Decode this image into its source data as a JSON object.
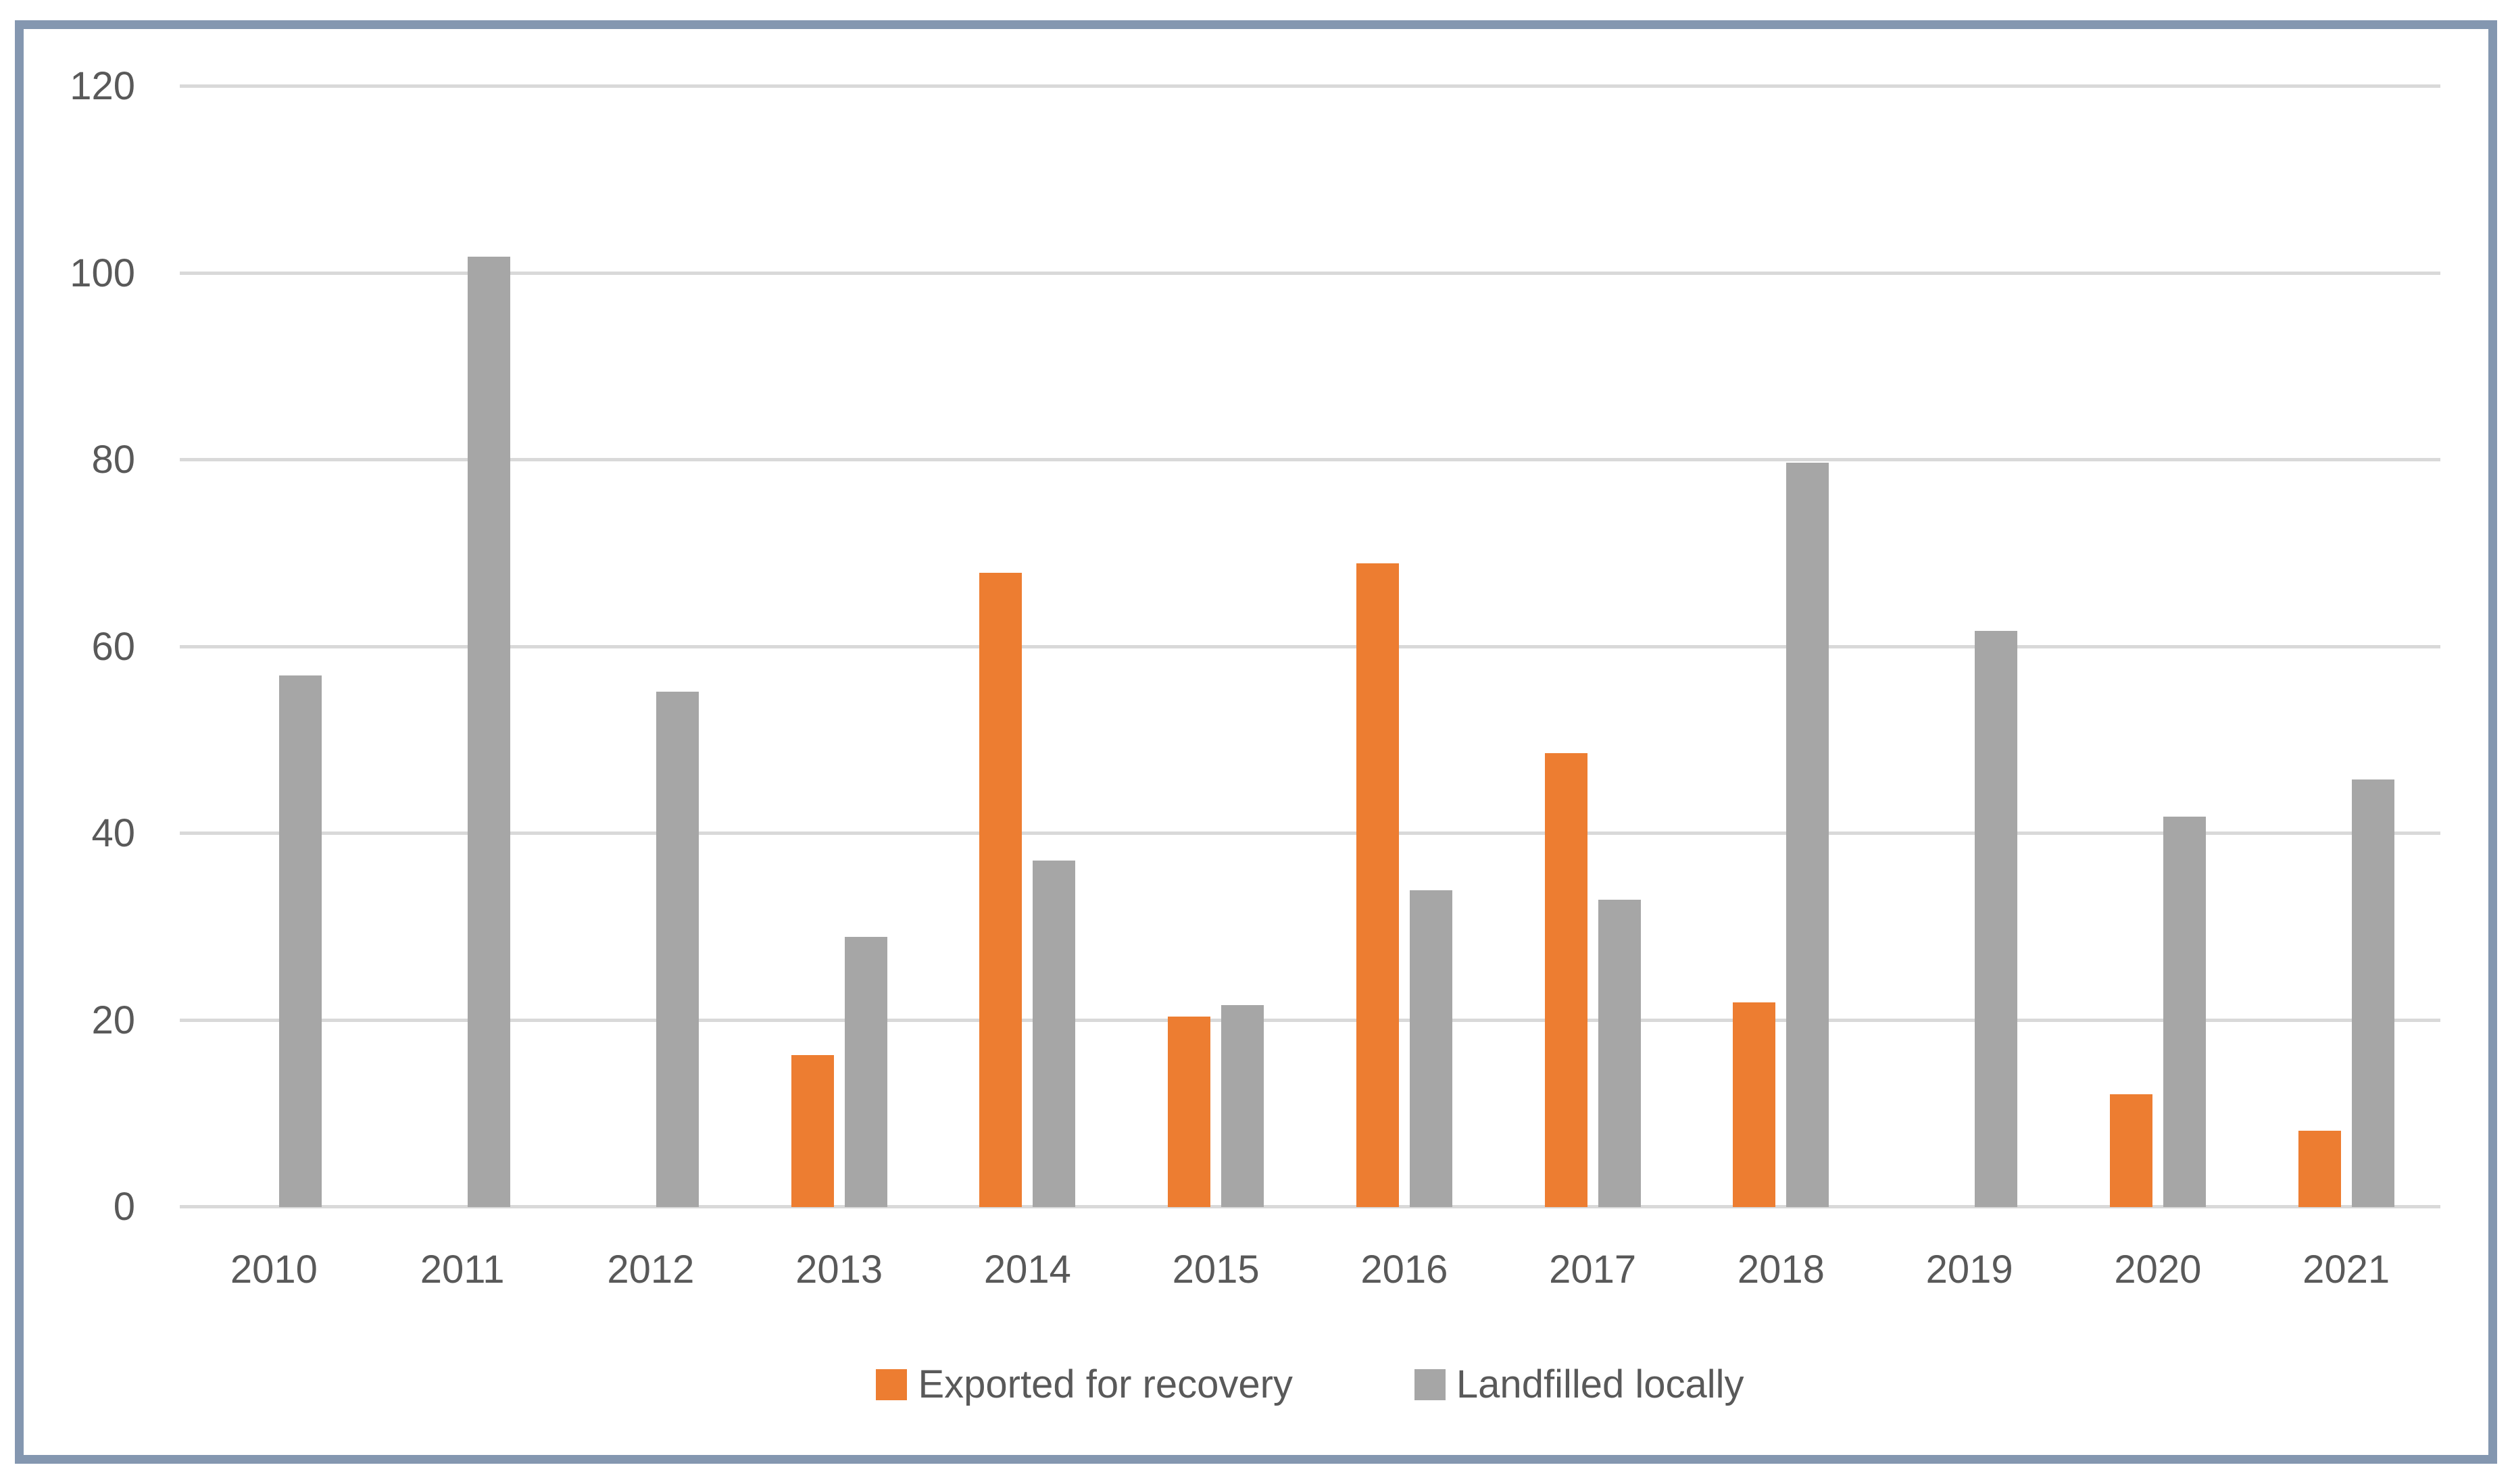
{
  "chart_data": {
    "type": "bar",
    "title": "",
    "xlabel": "",
    "ylabel": "",
    "categories": [
      "2010",
      "2011",
      "2012",
      "2013",
      "2014",
      "2015",
      "2016",
      "2017",
      "2018",
      "2019",
      "2020",
      "2021"
    ],
    "series": [
      {
        "name": "Exported for recovery",
        "color": "#ED7D31",
        "values": [
          0,
          0,
          0,
          16.3,
          67.9,
          20.4,
          68.9,
          48.6,
          21.9,
          0,
          12.1,
          8.2
        ]
      },
      {
        "name": "Landfilled locally",
        "color": "#A6A6A6",
        "values": [
          56.9,
          101.8,
          55.2,
          28.9,
          37.1,
          21.6,
          33.9,
          32.9,
          79.7,
          61.7,
          41.8,
          45.8
        ]
      }
    ],
    "ylim": [
      0,
      120
    ],
    "yticks": [
      0,
      20,
      40,
      60,
      80,
      100,
      120
    ],
    "grid": true,
    "legend_position": "bottom"
  },
  "colors": {
    "frame_border": "#8497B0",
    "gridline": "#D9D9D9",
    "axis_line": "#D9D9D9",
    "text": "#595959",
    "background": "#FFFFFF"
  }
}
